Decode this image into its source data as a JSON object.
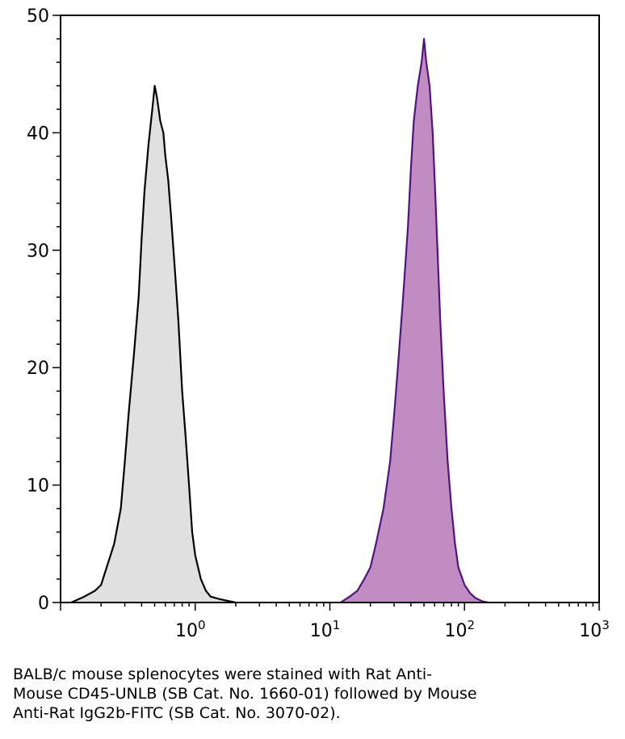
{
  "chart_data": {
    "type": "area",
    "title": "",
    "xlabel": "",
    "ylabel": "",
    "x_scale": "log",
    "xlim": [
      0.1,
      1000
    ],
    "ylim": [
      0,
      50
    ],
    "y_ticks": [
      0,
      10,
      20,
      30,
      40,
      50
    ],
    "x_ticks": [
      {
        "base": "10",
        "exp": "0",
        "value": 1
      },
      {
        "base": "10",
        "exp": "1",
        "value": 10
      },
      {
        "base": "10",
        "exp": "2",
        "value": 100
      },
      {
        "base": "10",
        "exp": "3",
        "value": 1000
      }
    ],
    "grid": false,
    "legend": "none",
    "series": [
      {
        "color_line": "#000000",
        "color_fill": "#e0e0e0",
        "x": [
          0.12,
          0.15,
          0.18,
          0.2,
          0.22,
          0.25,
          0.28,
          0.3,
          0.32,
          0.35,
          0.38,
          0.4,
          0.42,
          0.45,
          0.48,
          0.5,
          0.52,
          0.55,
          0.58,
          0.6,
          0.63,
          0.66,
          0.7,
          0.75,
          0.8,
          0.85,
          0.9,
          0.95,
          1.0,
          1.1,
          1.2,
          1.3,
          1.5,
          1.8,
          2.0
        ],
        "y": [
          0,
          0.5,
          1,
          1.5,
          3,
          5,
          8,
          12,
          16,
          21,
          26,
          31,
          35,
          39,
          42,
          44,
          43,
          41,
          40,
          38,
          36,
          33,
          29,
          24,
          18,
          14,
          10,
          6,
          4,
          2,
          1,
          0.5,
          0.3,
          0.1,
          0
        ]
      },
      {
        "color_line": "#55127f",
        "color_fill": "#c08cc2",
        "x": [
          12,
          14,
          16,
          18,
          20,
          22,
          25,
          28,
          30,
          32,
          35,
          38,
          40,
          42,
          45,
          48,
          50,
          52,
          55,
          58,
          60,
          63,
          66,
          70,
          75,
          80,
          85,
          90,
          100,
          110,
          120,
          135,
          150
        ],
        "y": [
          0,
          0.5,
          1,
          2,
          3,
          5,
          8,
          12,
          16,
          20,
          26,
          32,
          37,
          41,
          44,
          46,
          48,
          46,
          44,
          40,
          36,
          30,
          24,
          18,
          12,
          8,
          5,
          3,
          1.5,
          0.8,
          0.4,
          0.1,
          0
        ]
      }
    ],
    "caption_lines": [
      "BALB/c mouse splenocytes were stained with Rat Anti-",
      "Mouse CD45-UNLB (SB Cat. No. 1660-01) followed by Mouse",
      "Anti-Rat IgG2b-FITC (SB Cat. No. 3070-02)."
    ]
  }
}
